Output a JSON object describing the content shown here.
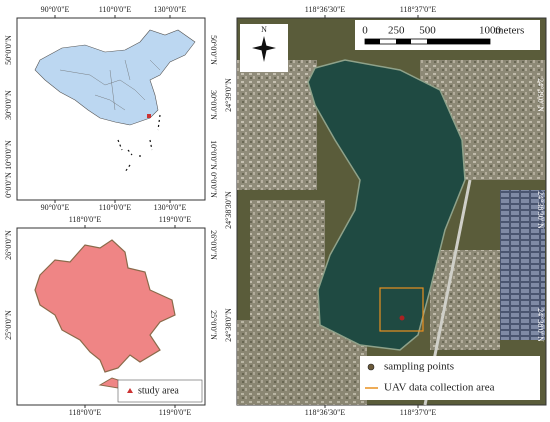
{
  "china_map": {
    "lon_labels": [
      "90°0'0\"E",
      "110°0'0\"E",
      "130°0'0\"E"
    ],
    "lat_labels": [
      "50°0'0\"N",
      "30°0'0\"N",
      "10°0'0\"N",
      "0°0'0\"N"
    ]
  },
  "region_map": {
    "lon_labels": [
      "118°0'0\"E",
      "119°0'0\"E"
    ],
    "lat_labels": [
      "26°0'0\"N",
      "25°0'0\"N"
    ],
    "legend": "study area"
  },
  "lake_map": {
    "lon_labels": [
      "118°36'30\"E",
      "118°37'0\"E"
    ],
    "lat_labels": [
      "24°39'0\"N",
      "24°38'30\"N",
      "24°38'0\"N"
    ],
    "north": "N",
    "scale_labels": [
      0,
      250,
      500,
      1000
    ],
    "scale_unit": "meters",
    "legend": [
      "sampling points",
      "UAV data collection area"
    ]
  }
}
